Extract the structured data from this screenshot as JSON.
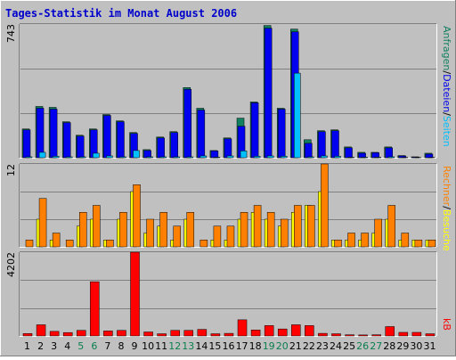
{
  "title": "Tages-Statistik im Monat August 2006",
  "colors": {
    "background": "#c0c0c0",
    "frame_light": "#ffffff",
    "frame_dark": "#808080",
    "title": "#0000cc",
    "grid": "#808080",
    "anfragen": "#108060",
    "dateien": "#0000ee",
    "seiten": "#00c0ff",
    "besuche": "#ffff00",
    "rechner": "#ff8000",
    "kb": "#ff0000",
    "weekend_label": "#0a7f4f",
    "weekday_label": "#000000"
  },
  "chart_data": [
    {
      "type": "bar",
      "panel": "top",
      "ymax_label": "743",
      "ylim": [
        0,
        743
      ],
      "grid": true,
      "legend_position": "right-vertical",
      "legend": [
        "Anfragen",
        "Dateien",
        "Seiten"
      ],
      "categories": [
        1,
        2,
        3,
        4,
        5,
        6,
        7,
        8,
        9,
        10,
        11,
        12,
        13,
        14,
        15,
        16,
        17,
        18,
        19,
        20,
        21,
        22,
        23,
        24,
        25,
        26,
        27,
        28,
        29,
        30,
        31
      ],
      "series": [
        {
          "name": "Anfragen",
          "values": [
            160,
            285,
            280,
            200,
            125,
            160,
            240,
            205,
            140,
            45,
            115,
            145,
            390,
            275,
            40,
            110,
            220,
            310,
            735,
            275,
            715,
            100,
            150,
            155,
            60,
            30,
            30,
            60,
            12,
            5,
            25
          ]
        },
        {
          "name": "Dateien",
          "values": [
            155,
            275,
            270,
            195,
            120,
            155,
            235,
            200,
            135,
            40,
            110,
            140,
            380,
            265,
            38,
            105,
            175,
            305,
            720,
            270,
            700,
            80,
            145,
            150,
            55,
            25,
            28,
            55,
            10,
            4,
            20
          ]
        },
        {
          "name": "Seiten",
          "values": [
            5,
            30,
            8,
            5,
            5,
            25,
            10,
            5,
            40,
            5,
            5,
            5,
            5,
            10,
            3,
            10,
            38,
            8,
            10,
            8,
            470,
            5,
            10,
            8,
            3,
            3,
            3,
            5,
            2,
            1,
            2
          ]
        }
      ]
    },
    {
      "type": "bar",
      "panel": "middle",
      "ymax_label": "12",
      "ylim": [
        0,
        12
      ],
      "grid": true,
      "legend_position": "right-vertical",
      "legend": [
        "Rechner",
        "Besuche"
      ],
      "categories": [
        1,
        2,
        3,
        4,
        5,
        6,
        7,
        8,
        9,
        10,
        11,
        12,
        13,
        14,
        15,
        16,
        17,
        18,
        19,
        20,
        21,
        22,
        23,
        24,
        25,
        26,
        27,
        28,
        29,
        30,
        31
      ],
      "series": [
        {
          "name": "Rechner",
          "values": [
            1,
            7,
            2,
            1,
            5,
            6,
            1,
            5,
            9,
            4,
            5,
            3,
            5,
            1,
            3,
            3,
            5,
            6,
            5,
            4,
            6,
            6,
            12,
            1,
            2,
            2,
            4,
            6,
            2,
            1,
            1
          ]
        },
        {
          "name": "Besuche",
          "values": [
            0,
            4,
            1,
            0,
            3,
            4,
            1,
            4,
            8,
            2,
            3,
            1,
            4,
            0,
            1,
            1,
            4,
            5,
            4,
            3,
            5,
            6,
            8,
            1,
            1,
            1,
            2,
            4,
            1,
            1,
            1
          ]
        }
      ]
    },
    {
      "type": "bar",
      "panel": "bottom",
      "ymax_label": "4202",
      "ylim": [
        0,
        4202
      ],
      "grid": true,
      "legend_position": "right-vertical",
      "legend": [
        "kB"
      ],
      "categories": [
        1,
        2,
        3,
        4,
        5,
        6,
        7,
        8,
        9,
        10,
        11,
        12,
        13,
        14,
        15,
        16,
        17,
        18,
        19,
        20,
        21,
        22,
        23,
        24,
        25,
        26,
        27,
        28,
        29,
        30,
        31
      ],
      "series": [
        {
          "name": "kB",
          "values": [
            120,
            560,
            230,
            170,
            280,
            2720,
            250,
            280,
            4202,
            200,
            110,
            280,
            280,
            330,
            110,
            130,
            810,
            300,
            520,
            350,
            560,
            520,
            130,
            110,
            60,
            50,
            60,
            470,
            180,
            180,
            110
          ]
        }
      ]
    }
  ],
  "x_labels": [
    "1",
    "2",
    "3",
    "4",
    "5",
    "6",
    "7",
    "8",
    "9",
    "10",
    "11",
    "12",
    "13",
    "14",
    "15",
    "16",
    "17",
    "18",
    "19",
    "20",
    "21",
    "22",
    "23",
    "24",
    "25",
    "26",
    "27",
    "28",
    "29",
    "30",
    "31"
  ],
  "weekend_days": [
    5,
    6,
    12,
    13,
    19,
    20,
    26,
    27
  ],
  "legend_text": {
    "top": [
      "Anfragen",
      "/",
      "Dateien",
      "/",
      "Seiten"
    ],
    "middle": [
      "Besuche",
      "/",
      "Rechner"
    ],
    "bottom": [
      "kB"
    ]
  }
}
